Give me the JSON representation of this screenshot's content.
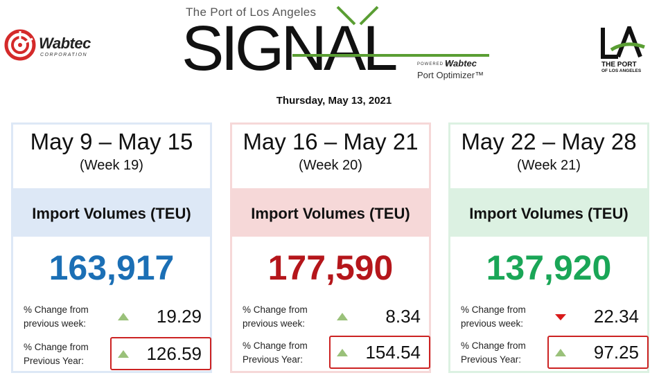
{
  "header": {
    "port_line": "The Port of Los Angeles",
    "signal_word": "SIGNAL",
    "powered_by": "POWERED BY",
    "powered_brand": "Wabtec",
    "product": "Port Optimizer™",
    "left_logo": {
      "name": "Wabtec",
      "sub": "CORPORATION",
      "icon": "wabtec-logo-icon"
    },
    "right_logo": {
      "line1": "THE PORT",
      "line2": "OF LOS ANGELES",
      "icon": "port-la-logo-icon"
    },
    "date": "Thursday, May 13, 2021"
  },
  "colors": {
    "signal_green": "#5a9e33",
    "blue": "#1b6fb5",
    "red": "#b5161b",
    "green": "#1aa657",
    "up_arrow": "#9ac17a",
    "down_arrow": "#d91a1a",
    "highlight": "#cc2222"
  },
  "cards": [
    {
      "range": "May 9 – May 15",
      "week": "(Week 19)",
      "metric": "Import Volumes (TEU)",
      "value": "163,917",
      "theme": "blue",
      "week_change_label_1": "% Change from",
      "week_change_label_2": "previous week:",
      "week_change_direction": "up",
      "week_change": "19.29",
      "year_change_label_1": "% Change from",
      "year_change_label_2": "Previous Year:",
      "year_change_direction": "up",
      "year_change": "126.59"
    },
    {
      "range": "May 16 – May 21",
      "week": "(Week 20)",
      "metric": "Import Volumes (TEU)",
      "value": "177,590",
      "theme": "red",
      "week_change_label_1": "% Change from",
      "week_change_label_2": "previous week:",
      "week_change_direction": "up",
      "week_change": "8.34",
      "year_change_label_1": "% Change from",
      "year_change_label_2": "Previous Year:",
      "year_change_direction": "up",
      "year_change": "154.54"
    },
    {
      "range": "May 22 – May 28",
      "week": "(Week 21)",
      "metric": "Import Volumes (TEU)",
      "value": "137,920",
      "theme": "green",
      "week_change_label_1": "% Change from",
      "week_change_label_2": "previous week:",
      "week_change_direction": "down",
      "week_change": "22.34",
      "year_change_label_1": "% Change from",
      "year_change_label_2": "Previous Year:",
      "year_change_direction": "up",
      "year_change": "97.25"
    }
  ]
}
